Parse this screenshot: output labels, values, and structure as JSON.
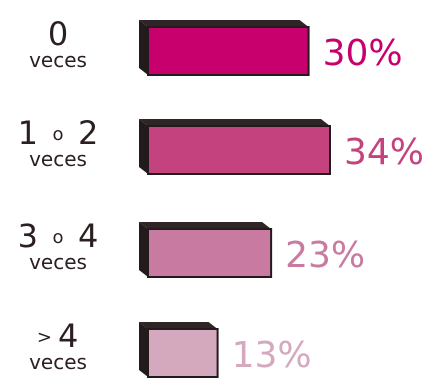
{
  "chart_data": {
    "type": "bar",
    "orientation": "horizontal",
    "categories": [
      {
        "main": "0",
        "connector": "",
        "second": "",
        "sub": "veces"
      },
      {
        "main": "1",
        "connector": "o",
        "second": "2",
        "sub": "veces"
      },
      {
        "main": "3",
        "connector": "o",
        "second": "4",
        "sub": "veces"
      },
      {
        "main": ">",
        "connector": "",
        "second": "4",
        "sub": "veces"
      }
    ],
    "values": [
      30,
      34,
      23,
      13
    ],
    "value_labels": [
      "30%",
      "34%",
      "23%",
      "13%"
    ],
    "unit": "%",
    "xlim": [
      0,
      34
    ],
    "colors": [
      "#c8006e",
      "#c4437e",
      "#c97aa1",
      "#d4a9bd"
    ],
    "label_colors": [
      "#c8006e",
      "#c4437e",
      "#c97aa1",
      "#d4a9bd"
    ],
    "style": "3d-bars",
    "grid": false,
    "legend": "none"
  }
}
